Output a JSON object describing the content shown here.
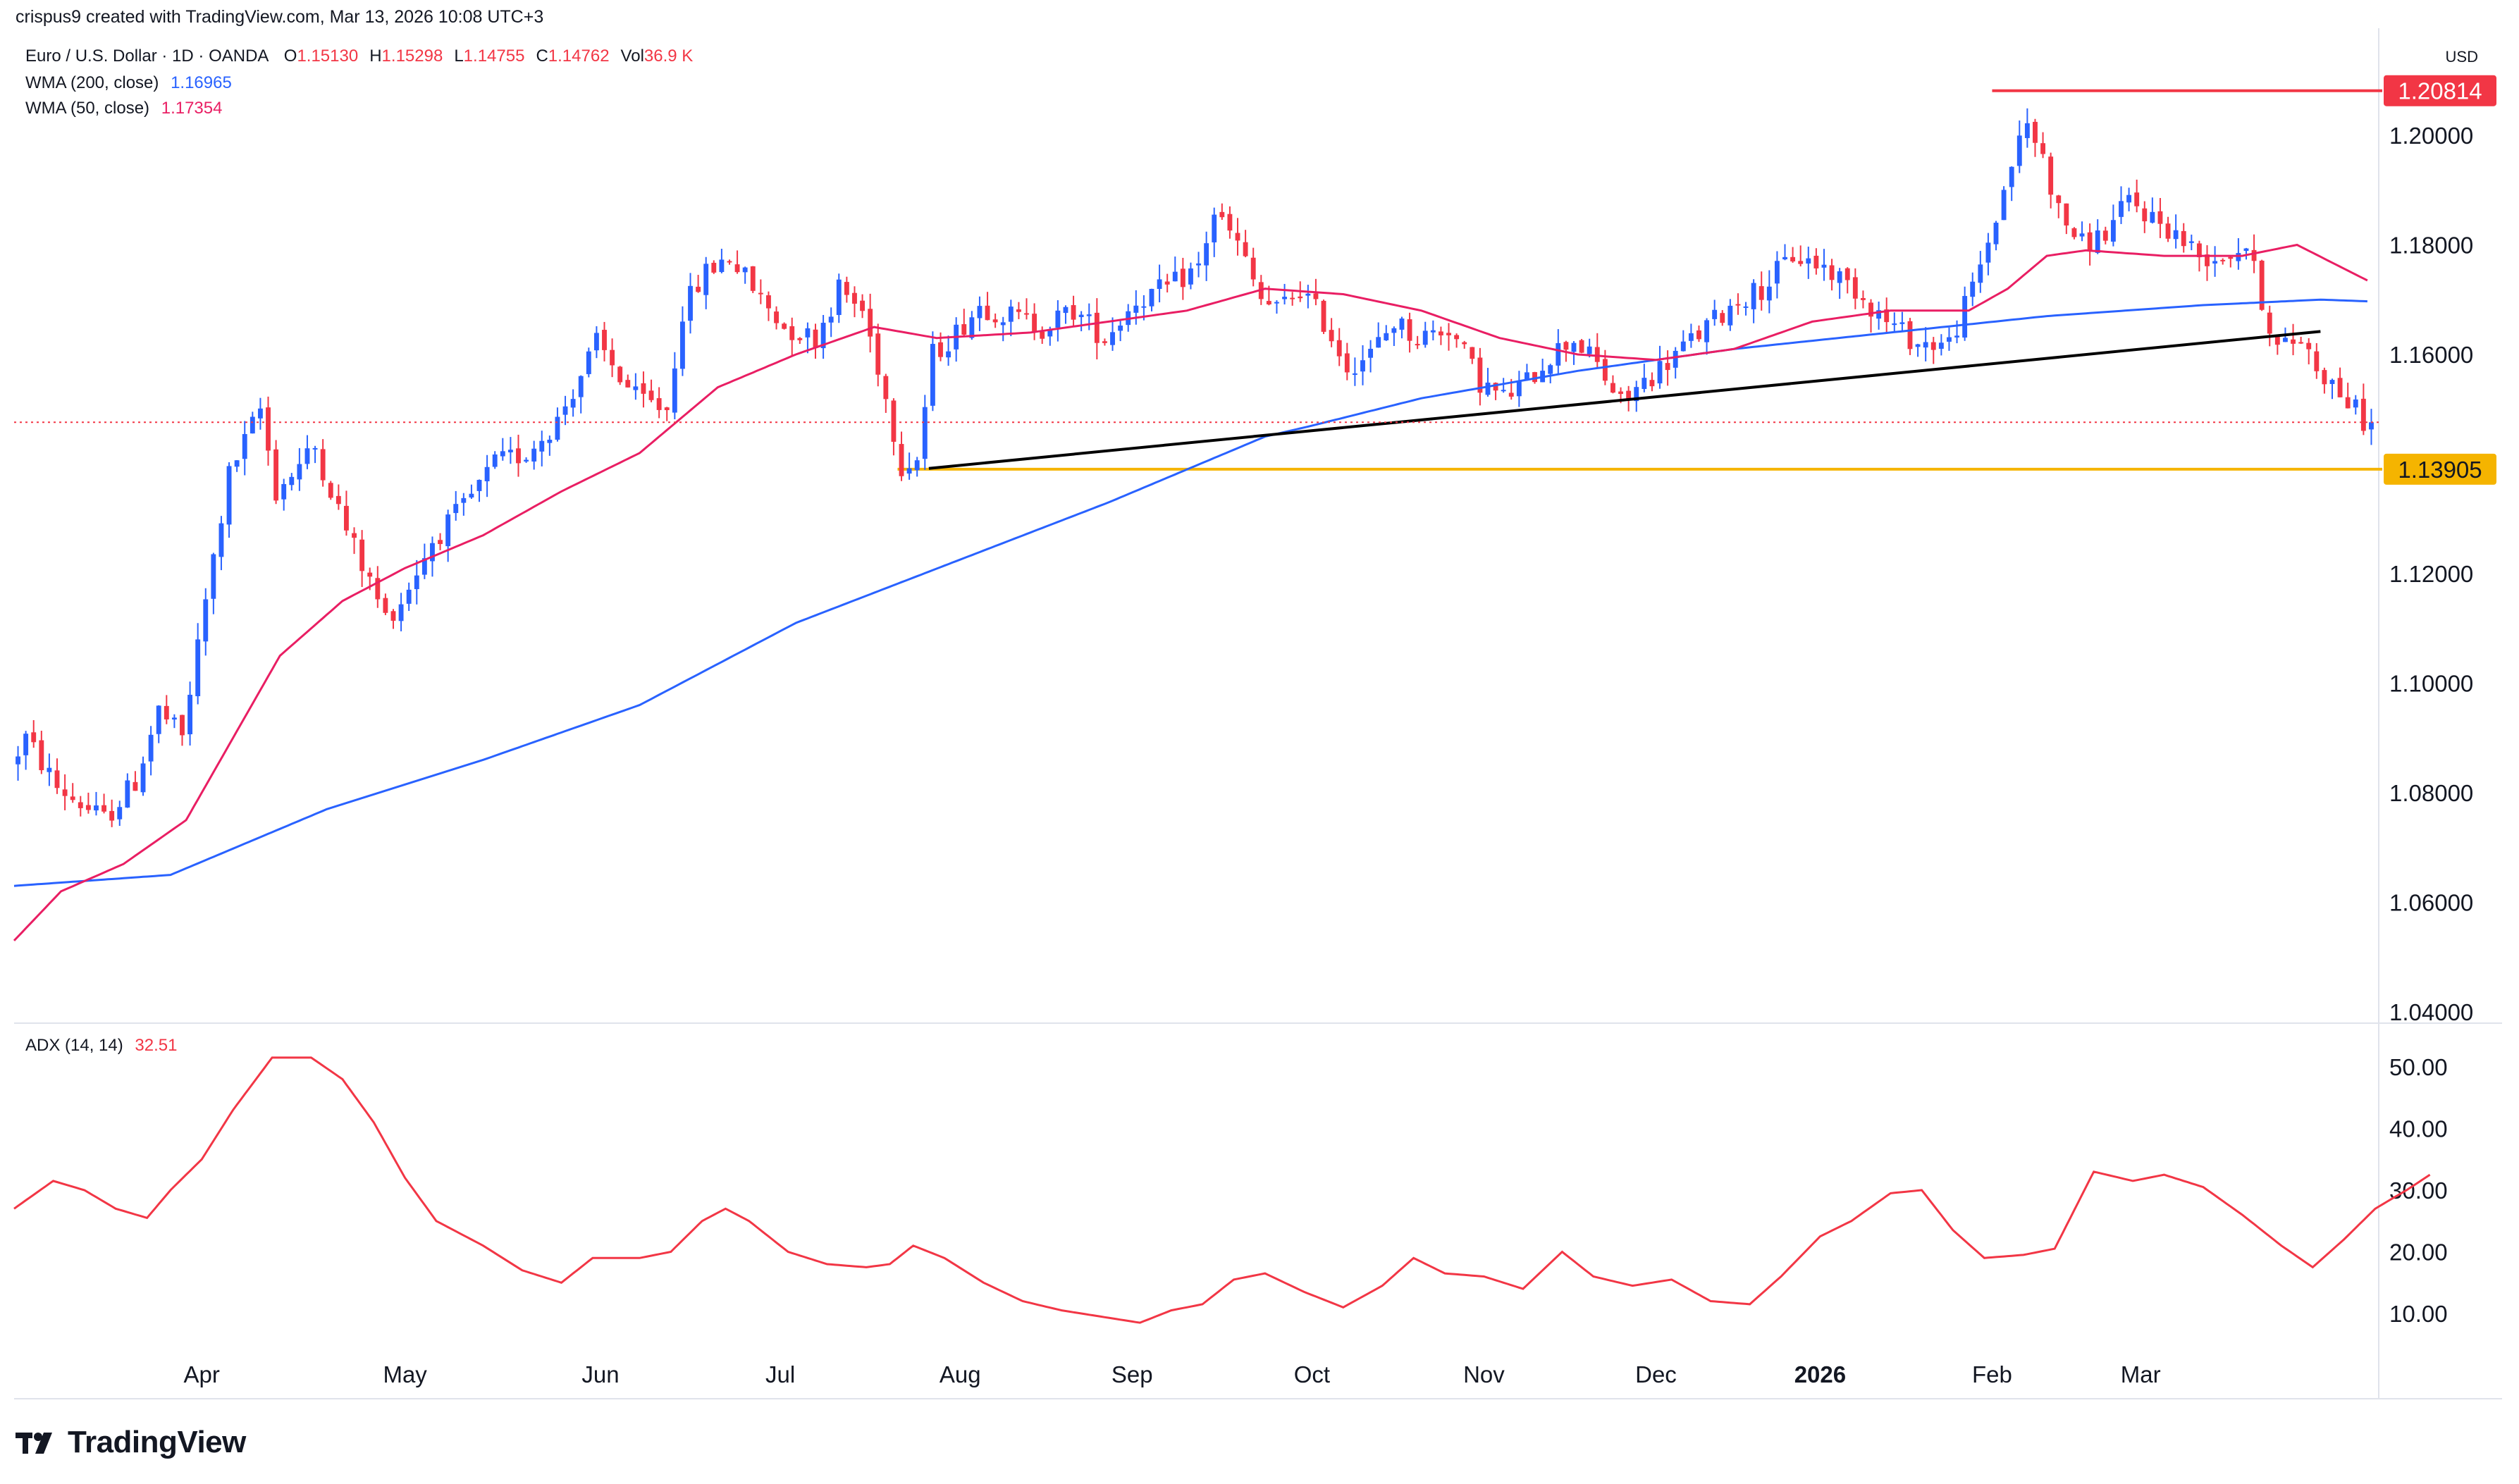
{
  "header": {
    "created_by": "crispus9 created with TradingView.com, Mar 13, 2026 10:08 UTC+3"
  },
  "legend": {
    "symbol": "Euro / U.S. Dollar · 1D · OANDA",
    "ohlc": [
      {
        "key": "O",
        "value": "1.15130"
      },
      {
        "key": "H",
        "value": "1.15298"
      },
      {
        "key": "L",
        "value": "1.14755"
      },
      {
        "key": "C",
        "value": "1.14762"
      },
      {
        "key": "Vol",
        "value": "36.9 K"
      }
    ],
    "wma200_label": "WMA (200, close)",
    "wma200_value": "1.16965",
    "wma50_label": "WMA (50, close)",
    "wma50_value": "1.17354",
    "adx_label": "ADX (14, 14)",
    "adx_value": "32.51"
  },
  "currency": "USD",
  "brand": "TradingView",
  "colors": {
    "up": "#2962ff",
    "down": "#f23645",
    "wma200": "#2962ff",
    "wma50": "#e91e63",
    "adx": "#f23645",
    "resistance": "#f23645",
    "support": "#f5b400",
    "trendline": "#000000",
    "text": "#131722"
  },
  "chart_data": {
    "type": "candlestick",
    "title": "Euro / U.S. Dollar · 1D · OANDA",
    "ylim": [
      1.035,
      1.213
    ],
    "y_ticks": [
      "1.04000",
      "1.06000",
      "1.08000",
      "1.10000",
      "1.12000",
      "1.16000",
      "1.18000",
      "1.20000"
    ],
    "x_ticks": [
      "Apr",
      "May",
      "Jun",
      "Jul",
      "Aug",
      "Sep",
      "Oct",
      "Nov",
      "Dec",
      "2026",
      "Feb",
      "Mar"
    ],
    "x_tick_days": [
      24,
      50,
      75,
      98,
      121,
      143,
      166,
      188,
      210,
      231,
      253,
      272
    ],
    "total_days": 302,
    "current_price": 1.14762,
    "price_levels": [
      {
        "label": "1.20814",
        "value": 1.20814,
        "kind": "resistance",
        "x_start_day": 253
      },
      {
        "label": "1.13905",
        "value": 1.13905,
        "kind": "support",
        "x_start_day": 113
      }
    ],
    "trendline": {
      "x1_day": 117,
      "y1": 1.1392,
      "x2_day": 295,
      "y2": 1.1642
    },
    "anchors": [
      [
        0,
        1.085
      ],
      [
        2,
        1.09
      ],
      [
        6,
        1.081
      ],
      [
        12,
        1.075
      ],
      [
        16,
        1.082
      ],
      [
        19,
        1.095
      ],
      [
        22,
        1.09
      ],
      [
        25,
        1.115
      ],
      [
        28,
        1.138
      ],
      [
        32,
        1.15
      ],
      [
        34,
        1.135
      ],
      [
        39,
        1.143
      ],
      [
        43,
        1.128
      ],
      [
        48,
        1.112
      ],
      [
        50,
        1.115
      ],
      [
        54,
        1.126
      ],
      [
        58,
        1.132
      ],
      [
        62,
        1.14
      ],
      [
        66,
        1.142
      ],
      [
        70,
        1.148
      ],
      [
        75,
        1.162
      ],
      [
        80,
        1.152
      ],
      [
        84,
        1.15
      ],
      [
        86,
        1.168
      ],
      [
        89,
        1.175
      ],
      [
        92,
        1.178
      ],
      [
        95,
        1.172
      ],
      [
        99,
        1.165
      ],
      [
        103,
        1.163
      ],
      [
        106,
        1.172
      ],
      [
        109,
        1.168
      ],
      [
        111,
        1.158
      ],
      [
        114,
        1.14
      ],
      [
        116,
        1.141
      ],
      [
        118,
        1.16
      ],
      [
        121,
        1.164
      ],
      [
        124,
        1.169
      ],
      [
        128,
        1.167
      ],
      [
        132,
        1.165
      ],
      [
        136,
        1.168
      ],
      [
        140,
        1.163
      ],
      [
        144,
        1.17
      ],
      [
        148,
        1.172
      ],
      [
        152,
        1.176
      ],
      [
        154,
        1.186
      ],
      [
        157,
        1.18
      ],
      [
        160,
        1.17
      ],
      [
        162,
        1.168
      ],
      [
        165,
        1.172
      ],
      [
        168,
        1.166
      ],
      [
        171,
        1.158
      ],
      [
        174,
        1.16
      ],
      [
        177,
        1.166
      ],
      [
        180,
        1.163
      ],
      [
        184,
        1.165
      ],
      [
        188,
        1.155
      ],
      [
        191,
        1.152
      ],
      [
        194,
        1.155
      ],
      [
        197,
        1.16
      ],
      [
        200,
        1.163
      ],
      [
        203,
        1.158
      ],
      [
        206,
        1.151
      ],
      [
        209,
        1.155
      ],
      [
        213,
        1.16
      ],
      [
        217,
        1.165
      ],
      [
        221,
        1.17
      ],
      [
        224,
        1.172
      ],
      [
        228,
        1.178
      ],
      [
        232,
        1.176
      ],
      [
        236,
        1.172
      ],
      [
        240,
        1.166
      ],
      [
        244,
        1.162
      ],
      [
        248,
        1.162
      ],
      [
        251,
        1.172
      ],
      [
        254,
        1.185
      ],
      [
        256,
        1.195
      ],
      [
        258,
        1.202
      ],
      [
        260,
        1.196
      ],
      [
        262,
        1.186
      ],
      [
        265,
        1.18
      ],
      [
        268,
        1.182
      ],
      [
        271,
        1.188
      ],
      [
        274,
        1.185
      ],
      [
        277,
        1.182
      ],
      [
        280,
        1.178
      ],
      [
        283,
        1.178
      ],
      [
        286,
        1.18
      ],
      [
        288,
        1.17
      ],
      [
        290,
        1.161
      ],
      [
        293,
        1.163
      ],
      [
        295,
        1.158
      ],
      [
        298,
        1.153
      ],
      [
        301,
        1.148
      ]
    ],
    "wma200_anchors": [
      [
        0,
        1.063
      ],
      [
        20,
        1.065
      ],
      [
        40,
        1.077
      ],
      [
        60,
        1.086
      ],
      [
        80,
        1.096
      ],
      [
        100,
        1.111
      ],
      [
        120,
        1.122
      ],
      [
        140,
        1.133
      ],
      [
        160,
        1.145
      ],
      [
        166,
        1.147
      ],
      [
        180,
        1.152
      ],
      [
        200,
        1.157
      ],
      [
        220,
        1.161
      ],
      [
        240,
        1.164
      ],
      [
        260,
        1.167
      ],
      [
        280,
        1.169
      ],
      [
        295,
        1.17
      ],
      [
        301,
        1.1697
      ]
    ],
    "wma50_anchors": [
      [
        0,
        1.053
      ],
      [
        6,
        1.062
      ],
      [
        14,
        1.067
      ],
      [
        22,
        1.075
      ],
      [
        28,
        1.09
      ],
      [
        34,
        1.105
      ],
      [
        42,
        1.115
      ],
      [
        50,
        1.121
      ],
      [
        60,
        1.127
      ],
      [
        70,
        1.135
      ],
      [
        80,
        1.142
      ],
      [
        90,
        1.154
      ],
      [
        100,
        1.16
      ],
      [
        110,
        1.165
      ],
      [
        118,
        1.163
      ],
      [
        130,
        1.164
      ],
      [
        140,
        1.166
      ],
      [
        150,
        1.168
      ],
      [
        160,
        1.172
      ],
      [
        170,
        1.171
      ],
      [
        180,
        1.168
      ],
      [
        190,
        1.163
      ],
      [
        200,
        1.16
      ],
      [
        210,
        1.159
      ],
      [
        220,
        1.161
      ],
      [
        230,
        1.166
      ],
      [
        240,
        1.168
      ],
      [
        250,
        1.168
      ],
      [
        255,
        1.172
      ],
      [
        260,
        1.178
      ],
      [
        265,
        1.179
      ],
      [
        275,
        1.178
      ],
      [
        285,
        1.178
      ],
      [
        292,
        1.18
      ],
      [
        301,
        1.1735
      ]
    ],
    "adx": {
      "ylim": [
        5,
        58
      ],
      "y_ticks": [
        "10.00",
        "20.00",
        "30.00",
        "40.00",
        "50.00"
      ],
      "anchors": [
        [
          0,
          27
        ],
        [
          5,
          31.5
        ],
        [
          9,
          30
        ],
        [
          13,
          27
        ],
        [
          17,
          25.5
        ],
        [
          20,
          30
        ],
        [
          24,
          35
        ],
        [
          28,
          43
        ],
        [
          33,
          51.5
        ],
        [
          38,
          51.5
        ],
        [
          42,
          48
        ],
        [
          46,
          41
        ],
        [
          50,
          32
        ],
        [
          54,
          25
        ],
        [
          60,
          21
        ],
        [
          65,
          17
        ],
        [
          70,
          15
        ],
        [
          74,
          19
        ],
        [
          80,
          19
        ],
        [
          84,
          20
        ],
        [
          88,
          25
        ],
        [
          91,
          27
        ],
        [
          94,
          25
        ],
        [
          99,
          20
        ],
        [
          104,
          18
        ],
        [
          109,
          17.5
        ],
        [
          112,
          18
        ],
        [
          115,
          21
        ],
        [
          119,
          19
        ],
        [
          124,
          15
        ],
        [
          129,
          12
        ],
        [
          134,
          10.5
        ],
        [
          139,
          9.5
        ],
        [
          144,
          8.5
        ],
        [
          148,
          10.5
        ],
        [
          152,
          11.5
        ],
        [
          156,
          15.5
        ],
        [
          160,
          16.5
        ],
        [
          165,
          13.5
        ],
        [
          170,
          11
        ],
        [
          175,
          14.5
        ],
        [
          179,
          19
        ],
        [
          183,
          16.5
        ],
        [
          188,
          16
        ],
        [
          193,
          14
        ],
        [
          198,
          20
        ],
        [
          202,
          16
        ],
        [
          207,
          14.5
        ],
        [
          212,
          15.5
        ],
        [
          217,
          12
        ],
        [
          222,
          11.5
        ],
        [
          226,
          16
        ],
        [
          231,
          22.5
        ],
        [
          235,
          25
        ],
        [
          240,
          29.5
        ],
        [
          244,
          30
        ],
        [
          248,
          23.5
        ],
        [
          252,
          19
        ],
        [
          257,
          19.5
        ],
        [
          261,
          20.5
        ],
        [
          266,
          33
        ],
        [
          271,
          31.5
        ],
        [
          275,
          32.5
        ],
        [
          280,
          30.5
        ],
        [
          285,
          26
        ],
        [
          290,
          21
        ],
        [
          294,
          17.5
        ],
        [
          298,
          22
        ],
        [
          302,
          27
        ],
        [
          306,
          30
        ],
        [
          309,
          32.5
        ]
      ]
    }
  }
}
